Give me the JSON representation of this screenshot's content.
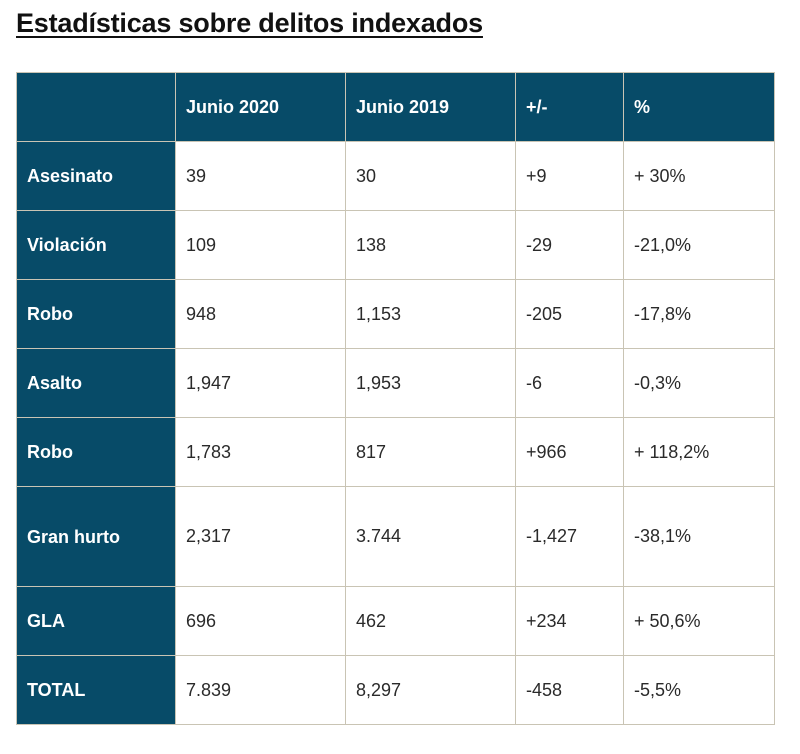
{
  "title": "Estadísticas sobre delitos indexados",
  "columns": [
    "",
    "Junio 2020",
    "Junio 2019",
    "+/-",
    "%"
  ],
  "rows": [
    {
      "label": "Asesinato",
      "june_2020": "39",
      "june_2019": "30",
      "diff": "+9",
      "pct": "+ 30%"
    },
    {
      "label": "Violación",
      "june_2020": "109",
      "june_2019": "138",
      "diff": "-29",
      "pct": "-21,0%"
    },
    {
      "label": "Robo",
      "june_2020": "948",
      "june_2019": "1,153",
      "diff": "-205",
      "pct": "-17,8%"
    },
    {
      "label": "Asalto",
      "june_2020": "1,947",
      "june_2019": "1,953",
      "diff": "-6",
      "pct": "-0,3%"
    },
    {
      "label": "Robo",
      "june_2020": "1,783",
      "june_2019": "817",
      "diff": "+966",
      "pct": "+ 118,2%"
    },
    {
      "label": "Gran hurto",
      "june_2020": "2,317",
      "june_2019": "3.744",
      "diff": "-1,427",
      "pct": "-38,1%"
    },
    {
      "label": "GLA",
      "june_2020": "696",
      "june_2019": "462",
      "diff": "+234",
      "pct": "+ 50,6%"
    },
    {
      "label": "TOTAL",
      "june_2020": "7.839",
      "june_2019": "8,297",
      "diff": "-458",
      "pct": "-5,5%"
    }
  ],
  "colors": {
    "header_bg": "#074b68",
    "header_text": "#ffffff",
    "border": "#c9c4b4"
  }
}
